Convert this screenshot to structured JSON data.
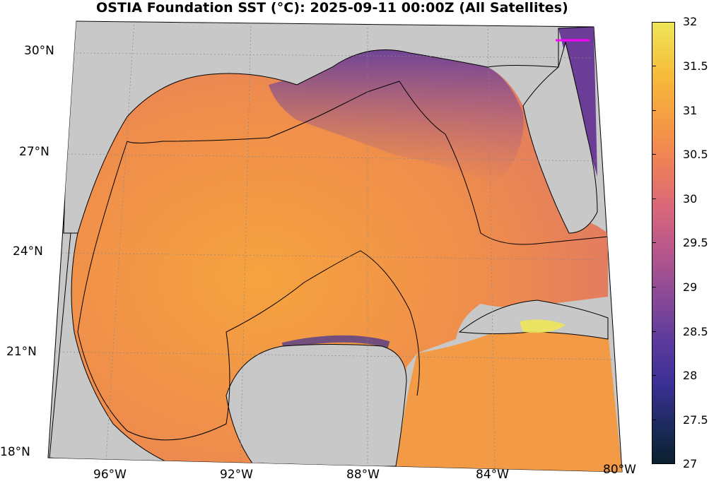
{
  "title": "OSTIA Foundation SST (°C): 2025-09-11 00:00Z (All Satellites)",
  "lat_labels": [
    "30°N",
    "27°N",
    "24°N",
    "21°N",
    "18°N"
  ],
  "lon_labels": [
    "96°W",
    "92°W",
    "88°W",
    "84°W",
    "80°W"
  ],
  "colorbar": {
    "ticks": [
      "32",
      "31.5",
      "31",
      "30.5",
      "30",
      "29.5",
      "29",
      "28.5",
      "28",
      "27.5",
      "27"
    ],
    "min": 27,
    "max": 32,
    "colors": [
      "#0b1f2e",
      "#3b2f96",
      "#8a4a96",
      "#d8677a",
      "#f59c43",
      "#eee558"
    ]
  },
  "colors": {
    "land": "#c8c8c8",
    "ocean_warm": "#f2974a",
    "ocean_cool": "#6a3f9a",
    "marker": "#ff00ff"
  }
}
